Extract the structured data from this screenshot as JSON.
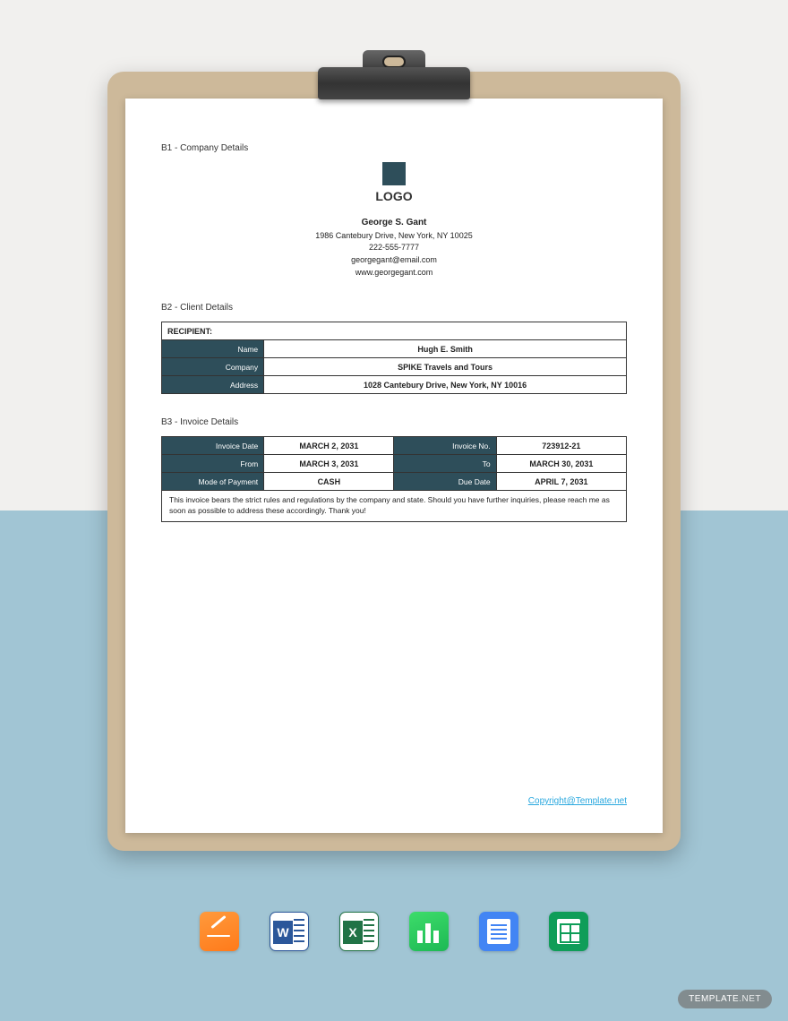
{
  "colors": {
    "bg_top": "#f1f0ee",
    "bg_bottom": "#a1c5d4",
    "clipboard": "#cdb99a",
    "accent": "#2e4e5a",
    "link": "#29a8df"
  },
  "sections": {
    "b1_label": "B1 - Company Details",
    "b2_label": "B2 - Client Details",
    "b3_label": "B3 - Invoice Details"
  },
  "logo_text": "LOGO",
  "company": {
    "name": "George S. Gant",
    "address": "1986 Cantebury Drive, New York, NY 10025",
    "phone": "222-555-7777",
    "email": "georgegant@email.com",
    "website": "www.georgegant.com"
  },
  "client": {
    "header": "RECIPIENT:",
    "rows": [
      {
        "label": "Name",
        "value": "Hugh E. Smith"
      },
      {
        "label": "Company",
        "value": "SPIKE Travels and Tours"
      },
      {
        "label": "Address",
        "value": "1028 Cantebury Drive, New York, NY 10016"
      }
    ]
  },
  "invoice": {
    "rows": [
      {
        "l1": "Invoice Date",
        "v1": "MARCH 2, 2031",
        "l2": "Invoice No.",
        "v2": "723912-21"
      },
      {
        "l1": "From",
        "v1": "MARCH 3, 2031",
        "l2": "To",
        "v2": "MARCH 30, 2031"
      },
      {
        "l1": "Mode of Payment",
        "v1": "CASH",
        "l2": "Due Date",
        "v2": "APRIL 7, 2031"
      }
    ],
    "note": "This invoice bears the strict rules and regulations by the company and state. Should you have further inquiries, please reach me as soon as possible to address these accordingly. Thank you!"
  },
  "copyright": "Copyright@Template.net",
  "watermark": {
    "bold": "TEMPLATE",
    "light": ".NET"
  },
  "apps": [
    "pages",
    "word",
    "excel",
    "numbers",
    "docs",
    "sheets"
  ]
}
